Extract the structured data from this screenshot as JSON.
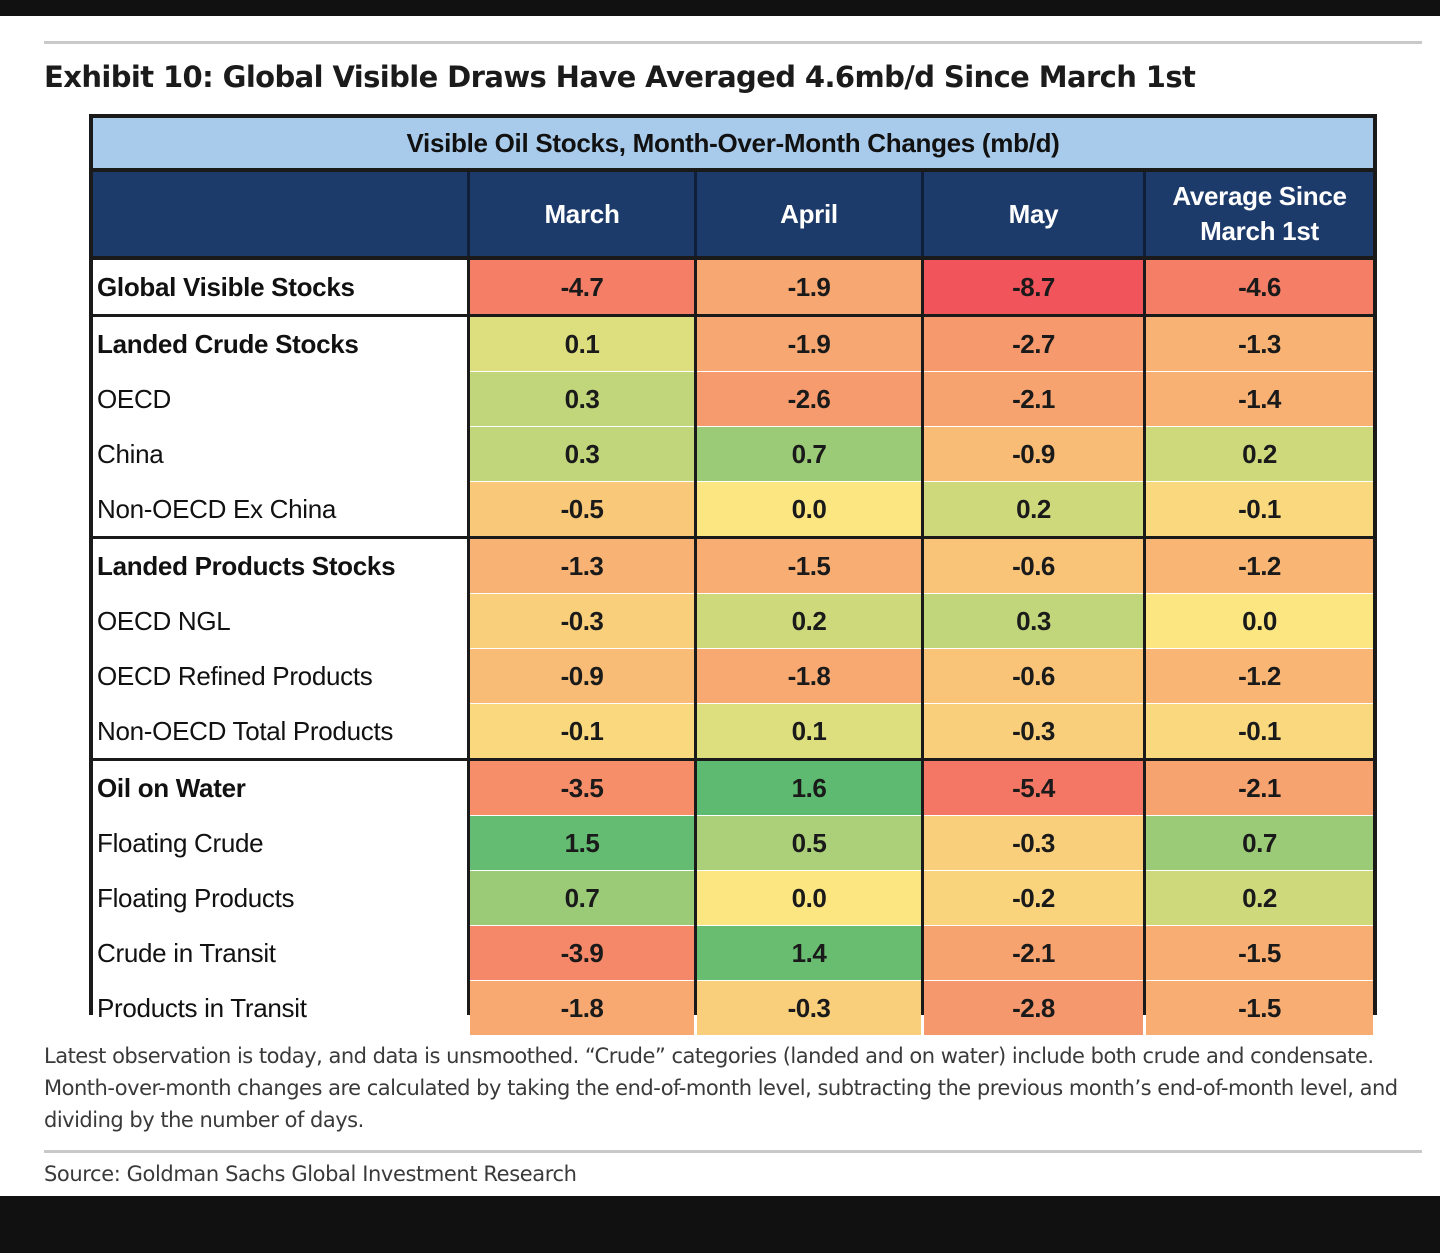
{
  "exhibit_title": "Exhibit 10: Global Visible Draws Have Averaged 4.6mb/d Since March 1st",
  "table_title": "Visible Oil Stocks, Month-Over-Month Changes (mb/d)",
  "columns": [
    "March",
    "April",
    "May",
    "Average Since March 1st"
  ],
  "footnote": "Latest observation is today, and data is unsmoothed. “Crude” categories (landed and on water) include both crude and condensate. Month-over-month changes are calculated by taking the end-of-month level, subtracting the previous month’s end-of-month level, and dividing by the number of days.",
  "source": "Source: Goldman Sachs Global Investment Research",
  "chart_data": {
    "type": "heatmap",
    "title": "Visible Oil Stocks, Month-Over-Month Changes (mb/d)",
    "columns": [
      "March",
      "April",
      "May",
      "Average Since March 1st"
    ],
    "color_scale": {
      "most_negative": "#f2545b",
      "neutral": "#fbe681",
      "most_positive": "#5dba70"
    },
    "rows": [
      {
        "label": "Global Visible Stocks",
        "bold": true,
        "values": [
          "-4.7",
          "-1.9",
          "-8.7",
          "-4.6"
        ]
      },
      {
        "label": "Landed Crude Stocks",
        "bold": true,
        "values": [
          "0.1",
          "-1.9",
          "-2.7",
          "-1.3"
        ]
      },
      {
        "label": "OECD",
        "bold": false,
        "values": [
          "0.3",
          "-2.6",
          "-2.1",
          "-1.4"
        ]
      },
      {
        "label": "China",
        "bold": false,
        "values": [
          "0.3",
          "0.7",
          "-0.9",
          "0.2"
        ]
      },
      {
        "label": "Non-OECD Ex China",
        "bold": false,
        "values": [
          "-0.5",
          "0.0",
          "0.2",
          "-0.1"
        ]
      },
      {
        "label": "Landed Products Stocks",
        "bold": true,
        "values": [
          "-1.3",
          "-1.5",
          "-0.6",
          "-1.2"
        ]
      },
      {
        "label": "OECD NGL",
        "bold": false,
        "values": [
          "-0.3",
          "0.2",
          "0.3",
          "0.0"
        ]
      },
      {
        "label": "OECD Refined Products",
        "bold": false,
        "values": [
          "-0.9",
          "-1.8",
          "-0.6",
          "-1.2"
        ]
      },
      {
        "label": "Non-OECD Total Products",
        "bold": false,
        "values": [
          "-0.1",
          "0.1",
          "-0.3",
          "-0.1"
        ]
      },
      {
        "label": "Oil on Water",
        "bold": true,
        "values": [
          "-3.5",
          "1.6",
          "-5.4",
          "-2.1"
        ]
      },
      {
        "label": "Floating Crude",
        "bold": false,
        "values": [
          "1.5",
          "0.5",
          "-0.3",
          "0.7"
        ]
      },
      {
        "label": "Floating Products",
        "bold": false,
        "values": [
          "0.7",
          "0.0",
          "-0.2",
          "0.2"
        ]
      },
      {
        "label": "Crude in Transit",
        "bold": false,
        "values": [
          "-3.9",
          "1.4",
          "-2.1",
          "-1.5"
        ]
      },
      {
        "label": "Products in Transit",
        "bold": false,
        "values": [
          "-1.8",
          "-0.3",
          "-2.8",
          "-1.5"
        ]
      }
    ]
  }
}
